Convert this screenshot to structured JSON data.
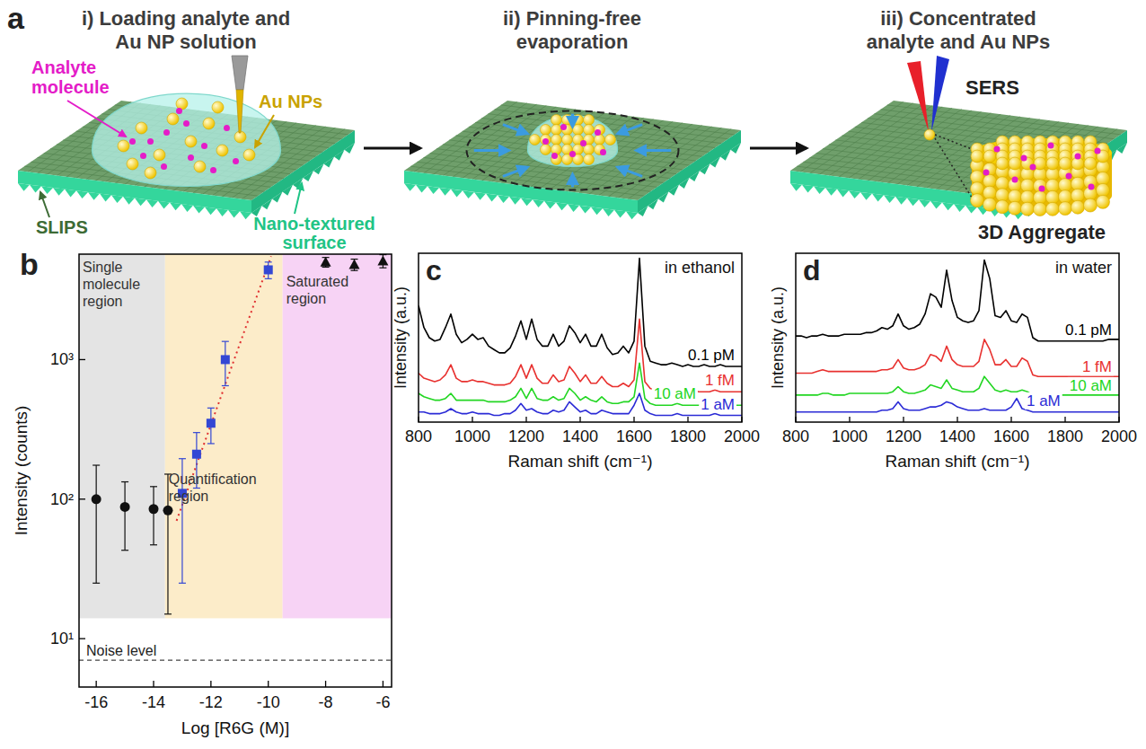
{
  "diagram": {
    "letter": "a",
    "steps": [
      "i) Loading analyte and Au NP solution",
      "ii) Pinning-free evaporation",
      "iii) Concentrated analyte and Au NPs"
    ],
    "labels": {
      "analyte": "Analyte molecule",
      "nps": "Au NPs",
      "slips": "SLIPS",
      "texture": "Nano-textured surface",
      "sers": "SERS",
      "aggregate": "3D Aggregate"
    }
  },
  "chart_data": [
    {
      "type": "scatter",
      "letter": "b",
      "x_label": "Log [R6G (M)]",
      "y_label": "Intensity (counts)",
      "log": "y",
      "xlim": [
        -16.6,
        -5.7
      ],
      "xticks": [
        -16,
        -14,
        -12,
        -10,
        -8,
        -6
      ],
      "ylim": [
        4.5,
        5700
      ],
      "yticks": [
        {
          "value": 10,
          "label": "10¹"
        },
        {
          "value": 100,
          "label": "10²"
        },
        {
          "value": 1000,
          "label": "10³"
        }
      ],
      "regions": [
        {
          "label": "Single molecule region",
          "x": [
            -16.6,
            -13.6
          ],
          "ymin": 14,
          "color": "#e4e4e4"
        },
        {
          "label": "Quantification region",
          "x": [
            -13.6,
            -9.5
          ],
          "ymin": 14,
          "color": "#fcecc9"
        },
        {
          "label": "Saturated region",
          "x": [
            -9.5,
            -5.7
          ],
          "ymin": 14,
          "color": "#f7d3f5"
        }
      ],
      "noise_level": {
        "label": "Noise level",
        "value": 7
      },
      "series": [
        {
          "type": "line",
          "color": "#e03030",
          "line_style": "dotted",
          "x": [
            -13.2,
            -9.9
          ],
          "values": [
            70,
            5500
          ]
        },
        {
          "color": "#111111",
          "marker": "circle",
          "x": [
            -16,
            -15,
            -14,
            -13.5
          ],
          "values": [
            100,
            88,
            85,
            83
          ],
          "errors": [
            75,
            45,
            38,
            68
          ]
        },
        {
          "color": "#3347d4",
          "marker": "square",
          "x": [
            -13,
            -12.5,
            -12,
            -11.5,
            -10
          ],
          "values": [
            110,
            210,
            350,
            1000,
            4400
          ],
          "errors": [
            85,
            90,
            100,
            350,
            600
          ]
        },
        {
          "color": "#111111",
          "marker": "triangle",
          "x": [
            -8,
            -7,
            -6
          ],
          "values": [
            5000,
            4800,
            5100
          ],
          "errors": [
            400,
            450,
            550
          ]
        }
      ]
    },
    {
      "type": "line",
      "letter": "c",
      "annotation": "in ethanol",
      "x_label": "Raman shift (cm⁻¹)",
      "y_label": "Intensity (a.u.)",
      "tick_labels": "x",
      "xlim": [
        800,
        2000
      ],
      "xticks": [
        800,
        1000,
        1200,
        1400,
        1600,
        1800,
        2000
      ],
      "ylim": [
        0,
        100
      ],
      "x": [
        800,
        820,
        840,
        860,
        880,
        900,
        920,
        940,
        960,
        980,
        1000,
        1020,
        1040,
        1060,
        1080,
        1100,
        1120,
        1140,
        1160,
        1180,
        1200,
        1220,
        1240,
        1260,
        1280,
        1300,
        1320,
        1340,
        1360,
        1380,
        1400,
        1420,
        1440,
        1460,
        1480,
        1500,
        1520,
        1540,
        1560,
        1580,
        1600,
        1620,
        1640,
        1660,
        1680,
        1700,
        1720,
        1740,
        1760,
        1780,
        1800,
        1820,
        1840,
        1860,
        1880,
        1900,
        1920,
        1940,
        1960,
        1980,
        2000
      ],
      "series": [
        {
          "name": "0.1 pM",
          "color": "#000000",
          "values": [
            69,
            56,
            50,
            48,
            49,
            56,
            64,
            52,
            47,
            49,
            52,
            49,
            50,
            45,
            43,
            41,
            41,
            44,
            51,
            60,
            49,
            61,
            49,
            45,
            45,
            52,
            45,
            48,
            57,
            53,
            47,
            52,
            45,
            45,
            52,
            44,
            40,
            41,
            45,
            41,
            48,
            97,
            45,
            36,
            35,
            34,
            34,
            35,
            34,
            33,
            34,
            33,
            33,
            34,
            33,
            33,
            34,
            33,
            33,
            33,
            33
          ]
        },
        {
          "name": "1 fM",
          "color": "#e8312f",
          "values": [
            29,
            26,
            25,
            24,
            25,
            28,
            34,
            26,
            24,
            24,
            25,
            24,
            24,
            23,
            22,
            22,
            22,
            23,
            27,
            34,
            26,
            34,
            26,
            23,
            23,
            28,
            24,
            25,
            33,
            29,
            24,
            28,
            23,
            23,
            27,
            23,
            21,
            21,
            23,
            21,
            25,
            61,
            24,
            20,
            19,
            19,
            19,
            18,
            19,
            18,
            18,
            19,
            18,
            18,
            18,
            19,
            18,
            18,
            18,
            18,
            18
          ]
        },
        {
          "name": "10 aM",
          "color": "#22d622",
          "values": [
            17,
            15,
            14,
            13,
            13,
            14,
            17,
            13,
            13,
            13,
            13,
            13,
            13,
            12,
            12,
            12,
            12,
            13,
            15,
            20,
            14,
            20,
            14,
            13,
            13,
            15,
            13,
            14,
            20,
            17,
            13,
            15,
            13,
            12,
            15,
            12,
            11,
            11,
            12,
            12,
            15,
            35,
            14,
            11,
            10,
            10,
            10,
            10,
            11,
            10,
            10,
            10,
            10,
            11,
            10,
            10,
            10,
            10,
            10,
            10,
            10
          ]
        },
        {
          "name": "1 aM",
          "color": "#2b2bd6",
          "values": [
            6,
            6,
            5,
            5,
            5,
            6,
            8,
            6,
            5,
            5,
            6,
            5,
            5,
            5,
            4,
            4,
            5,
            5,
            7,
            11,
            7,
            8,
            6,
            5,
            5,
            7,
            6,
            7,
            12,
            9,
            6,
            7,
            5,
            5,
            7,
            6,
            5,
            5,
            5,
            5,
            10,
            17,
            7,
            5,
            4,
            4,
            4,
            4,
            5,
            4,
            4,
            4,
            4,
            4,
            4,
            5,
            4,
            4,
            4,
            4,
            4
          ]
        }
      ]
    },
    {
      "type": "line",
      "letter": "d",
      "annotation": "in water",
      "x_label": "Raman shift (cm⁻¹)",
      "y_label": "Intensity (a.u.)",
      "tick_labels": "x",
      "xlim": [
        800,
        2000
      ],
      "xticks": [
        800,
        1000,
        1200,
        1400,
        1600,
        1800,
        2000
      ],
      "ylim": [
        0,
        100
      ],
      "x": [
        800,
        820,
        840,
        860,
        880,
        900,
        920,
        940,
        960,
        980,
        1000,
        1020,
        1040,
        1060,
        1080,
        1100,
        1120,
        1140,
        1160,
        1180,
        1200,
        1220,
        1240,
        1260,
        1280,
        1300,
        1320,
        1340,
        1360,
        1380,
        1400,
        1420,
        1440,
        1460,
        1480,
        1500,
        1520,
        1540,
        1560,
        1580,
        1600,
        1620,
        1640,
        1660,
        1680,
        1700,
        1720,
        1740,
        1760,
        1780,
        1800,
        1820,
        1840,
        1860,
        1880,
        1900,
        1920,
        1940,
        1960,
        1980,
        2000
      ],
      "series": [
        {
          "name": "0.1 pM",
          "color": "#000000",
          "values": [
            51,
            51,
            50,
            51,
            51,
            52,
            51,
            51,
            51,
            52,
            52,
            52,
            52,
            53,
            53,
            54,
            56,
            55,
            57,
            64,
            57,
            55,
            56,
            58,
            64,
            76,
            74,
            68,
            90,
            72,
            62,
            60,
            59,
            60,
            66,
            96,
            85,
            63,
            62,
            66,
            60,
            59,
            64,
            62,
            50,
            48,
            48,
            48,
            48,
            48,
            48,
            48,
            48,
            48,
            48,
            48,
            48,
            48,
            49,
            49,
            49
          ]
        },
        {
          "name": "1 fM",
          "color": "#e8312f",
          "values": [
            29,
            29,
            29,
            29,
            30,
            31,
            30,
            30,
            30,
            30,
            30,
            30,
            30,
            30,
            30,
            30,
            31,
            31,
            32,
            37,
            32,
            31,
            31,
            32,
            34,
            40,
            39,
            36,
            45,
            37,
            34,
            33,
            33,
            33,
            36,
            49,
            43,
            34,
            34,
            37,
            33,
            33,
            38,
            36,
            28,
            27,
            27,
            27,
            27,
            27,
            27,
            27,
            27,
            27,
            27,
            27,
            27,
            27,
            27,
            27,
            27
          ]
        },
        {
          "name": "10 aM",
          "color": "#22d622",
          "values": [
            16,
            16,
            16,
            16,
            16,
            17,
            17,
            16,
            16,
            16,
            17,
            17,
            17,
            17,
            17,
            17,
            17,
            17,
            18,
            21,
            18,
            17,
            17,
            18,
            19,
            22,
            21,
            20,
            25,
            20,
            19,
            18,
            18,
            18,
            20,
            27,
            23,
            19,
            18,
            19,
            18,
            18,
            19,
            18,
            16,
            16,
            16,
            16,
            16,
            16,
            16,
            16,
            16,
            16,
            16,
            16,
            16,
            16,
            16,
            16,
            16
          ]
        },
        {
          "name": "1 aM",
          "color": "#2b2bd6",
          "values": [
            6,
            6,
            6,
            6,
            6,
            6,
            6,
            6,
            6,
            6,
            6,
            6,
            6,
            6,
            6,
            6,
            7,
            7,
            8,
            12,
            8,
            7,
            7,
            7,
            8,
            9,
            9,
            10,
            12,
            11,
            9,
            8,
            7,
            7,
            7,
            8,
            7,
            7,
            7,
            7,
            9,
            14,
            8,
            7,
            6,
            6,
            6,
            6,
            6,
            6,
            6,
            6,
            6,
            6,
            6,
            6,
            6,
            6,
            6,
            6,
            6
          ]
        }
      ]
    }
  ]
}
